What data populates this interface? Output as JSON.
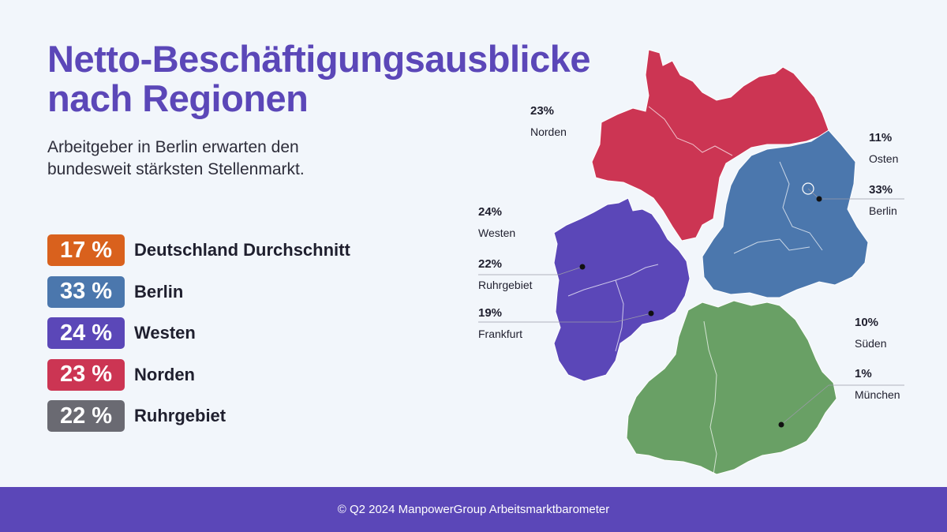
{
  "title_line1": "Netto-Beschäftigungsausblicke",
  "title_line2": "nach Regionen",
  "subtitle_line1": "Arbeitgeber in Berlin erwarten den",
  "subtitle_line2": "bundesweit stärksten Stellenmarkt.",
  "legend": [
    {
      "value": "17 %",
      "label": "Deutschland Durchschnitt",
      "color": "#d9611d"
    },
    {
      "value": "33 %",
      "label": "Berlin",
      "color": "#4b77ad"
    },
    {
      "value": "24 %",
      "label": "Westen",
      "color": "#5b47b8"
    },
    {
      "value": "23 %",
      "label": "Norden",
      "color": "#cc3553"
    },
    {
      "value": "22 %",
      "label": "Ruhrgebiet",
      "color": "#6a6a72"
    }
  ],
  "regions": {
    "norden": {
      "color": "#cc3553"
    },
    "osten": {
      "color": "#4b77ad"
    },
    "westen": {
      "color": "#5b47b8"
    },
    "sueden": {
      "color": "#69a065"
    }
  },
  "annotations": [
    {
      "key": "norden",
      "pct": "23%",
      "label": "Norden"
    },
    {
      "key": "osten",
      "pct": "11%",
      "label": "Osten"
    },
    {
      "key": "berlin",
      "pct": "33%",
      "label": "Berlin"
    },
    {
      "key": "westen",
      "pct": "24%",
      "label": "Westen"
    },
    {
      "key": "ruhrgebiet",
      "pct": "22%",
      "label": "Ruhrgebiet"
    },
    {
      "key": "frankfurt",
      "pct": "19%",
      "label": "Frankfurt"
    },
    {
      "key": "sueden",
      "pct": "10%",
      "label": "Süden"
    },
    {
      "key": "muenchen",
      "pct": "1%",
      "label": "München"
    }
  ],
  "footer": "© Q2 2024 ManpowerGroup Arbeitsmarktbarometer"
}
